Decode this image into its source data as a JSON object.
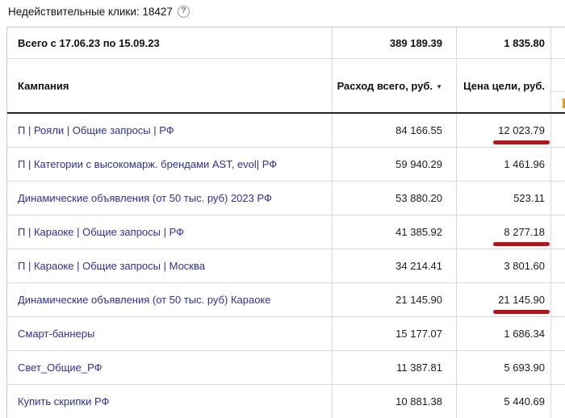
{
  "page": {
    "invalid_clicks_label": "Недействительные клики: 18427",
    "help_icon": "?"
  },
  "colors": {
    "link_blue": "#2f2f9d",
    "annotation_red": "#b1161b",
    "clipped_orange": "#e79c1d",
    "header_separator_black": "#232323"
  },
  "table": {
    "totals": {
      "label": "Всего с 17.06.23 по 15.09.23",
      "spend_total": "389 189.39",
      "cpa_total": "1 835.80"
    },
    "headers": {
      "campaign": "Кампания",
      "spend": "Расход всего, руб.",
      "sort_icon": "▼",
      "cpa": "Цена цели, руб."
    },
    "rows": [
      {
        "name": "П | Рояли | Общие запросы | РФ",
        "spend": "84 166.55",
        "cpa": "12 023.79",
        "underlined": true
      },
      {
        "name": "П | Категории с высокомарж. брендами AST, evol| РФ",
        "spend": "59 940.29",
        "cpa": "1 461.96",
        "underlined": false
      },
      {
        "name": "Динамические объявления (от 50 тыс. руб) 2023 РФ",
        "spend": "53 880.20",
        "cpa": "523.11",
        "underlined": false
      },
      {
        "name": "П | Караоке | Общие запросы | РФ",
        "spend": "41 385.92",
        "cpa": "8 277.18",
        "underlined": true
      },
      {
        "name": "П | Караоке | Общие запросы | Москва",
        "spend": "34 214.41",
        "cpa": "3 801.60",
        "underlined": false
      },
      {
        "name": "Динамические объявления (от 50 тыс. руб) Караоке",
        "spend": "21 145.90",
        "cpa": "21 145.90",
        "underlined": true
      },
      {
        "name": "Смарт-баннеры",
        "spend": "15 177.07",
        "cpa": "1 686.34",
        "underlined": false
      },
      {
        "name": "Свет_Общие_РФ",
        "spend": "11 387.81",
        "cpa": "5 693.90",
        "underlined": false
      },
      {
        "name": "Купить скрипки РФ",
        "spend": "10 881.38",
        "cpa": "5 440.69",
        "underlined": false
      }
    ]
  }
}
